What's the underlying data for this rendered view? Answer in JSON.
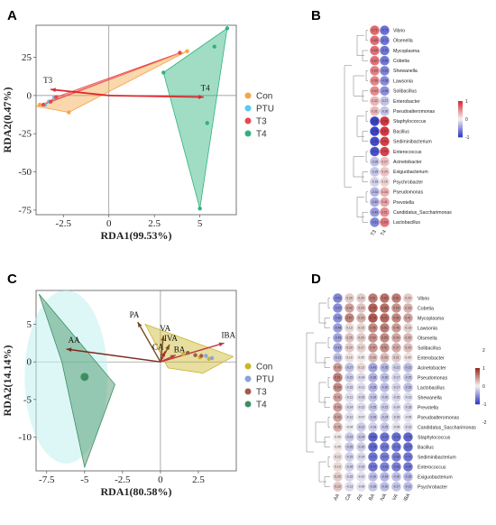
{
  "chart_data": [
    {
      "panel": "A",
      "type": "scatter",
      "xlabel": "RDA1(99.53%)",
      "ylabel": "RDA2(0.47%)",
      "xlim": [
        -4,
        7
      ],
      "ylim": [
        -78,
        46
      ],
      "xticks": [
        -2.5,
        0,
        2.5,
        5
      ],
      "yticks": [
        25,
        0,
        -25,
        -50,
        -75
      ],
      "legend": [
        "Con",
        "PTU",
        "T3",
        "T4"
      ],
      "colors": {
        "Con": "#f4a64a",
        "PTU": "#5bc8ec",
        "T3": "#e8474f",
        "T4": "#2fb37e"
      },
      "series": [
        {
          "name": "Con",
          "points": [
            [
              -3.8,
              -6
            ],
            [
              -2.2,
              -11
            ],
            [
              4.3,
              29
            ]
          ]
        },
        {
          "name": "PTU",
          "points": [
            [
              -3.5,
              -6
            ],
            [
              -3.3,
              -4
            ],
            [
              -3.0,
              -1
            ]
          ]
        },
        {
          "name": "T3",
          "points": [
            [
              -3.6,
              -6
            ],
            [
              -3.2,
              -4
            ],
            [
              -2.9,
              -1
            ],
            [
              3.9,
              28
            ]
          ]
        },
        {
          "name": "T4",
          "points": [
            [
              5,
              -74
            ],
            [
              5.4,
              -18
            ],
            [
              5.8,
              32
            ],
            [
              6.5,
              44
            ],
            [
              3,
              15
            ]
          ]
        }
      ],
      "hulls": [
        {
          "name": "Con",
          "points": [
            [
              -4,
              -7
            ],
            [
              4.3,
              29
            ],
            [
              -2.2,
              -11
            ]
          ]
        },
        {
          "name": "T3",
          "points": [
            [
              -3.6,
              -6
            ],
            [
              3.9,
              28
            ],
            [
              -2.9,
              -1
            ]
          ]
        },
        {
          "name": "T4",
          "points": [
            [
              3,
              15
            ],
            [
              6.5,
              44
            ],
            [
              5,
              -74
            ]
          ]
        }
      ],
      "vectors": [
        {
          "label": "T3",
          "x": -3.2,
          "y": 4
        },
        {
          "label": "T4",
          "x": 5.2,
          "y": -1
        }
      ]
    },
    {
      "panel": "B",
      "type": "heatmap",
      "columns": [
        "T3",
        "T4"
      ],
      "rows": [
        "Vibrio",
        "Olsenella",
        "Mycoplasma",
        "Cobetia",
        "Shewanella",
        "Lawsonia",
        "Solibacillus",
        "Enterobacter",
        "Pseudoalteromonas",
        "Staphylococcus",
        "Bacillus",
        "Sediminibacterium",
        "Enterococcus",
        "Acinetobacter",
        "Exiguobacterium",
        "Psychrobacter",
        "Pseudomonas",
        "Prevotella",
        "Candidatus_Saccharimonas",
        "Lactobacillus"
      ],
      "values": [
        [
          0.71,
          -0.73
        ],
        [
          0.69,
          -0.71
        ],
        [
          0.68,
          -0.7
        ],
        [
          0.67,
          -0.69
        ],
        [
          0.6,
          -0.63
        ],
        [
          0.56,
          -0.58
        ],
        [
          0.53,
          -0.55
        ],
        [
          0.32,
          -0.27
        ],
        [
          0.31,
          -0.26
        ],
        [
          -0.99,
          0.98
        ],
        [
          -0.98,
          0.97
        ],
        [
          -0.93,
          0.93
        ],
        [
          -0.91,
          0.9
        ],
        [
          -0.28,
          0.27
        ],
        [
          -0.25,
          0.24
        ],
        [
          -0.18,
          0.16
        ],
        [
          -0.34,
          0.34
        ],
        [
          -0.4,
          0.41
        ],
        [
          -0.49,
          0.51
        ],
        [
          -0.61,
          0.63
        ]
      ],
      "colorbar": [
        1,
        0,
        -1
      ]
    },
    {
      "panel": "C",
      "type": "scatter",
      "xlabel": "RDA1(80.58%)",
      "ylabel": "RDA2(14.14%)",
      "xlim": [
        -8.2,
        5
      ],
      "ylim": [
        -14.5,
        9.5
      ],
      "xticks": [
        -7.5,
        -5,
        -2.5,
        0,
        2.5
      ],
      "yticks": [
        5,
        0,
        -5,
        -10
      ],
      "legend": [
        "Con",
        "PTU",
        "T3",
        "T4"
      ],
      "colors": {
        "Con": "#c9b52a",
        "PTU": "#8aa4d8",
        "T3": "#a35a48",
        "T4": "#3d8f62"
      },
      "series": [
        {
          "name": "Con",
          "points": [
            [
              1.5,
              1.0
            ],
            [
              2.6,
              0.6
            ],
            [
              3.2,
              0.4
            ]
          ]
        },
        {
          "name": "PTU",
          "points": [
            [
              3.4,
              0.5
            ],
            [
              3.0,
              0.8
            ]
          ]
        },
        {
          "name": "T3",
          "points": [
            [
              1.8,
              1.2
            ],
            [
              2.3,
              0.9
            ],
            [
              2.7,
              0.8
            ]
          ]
        },
        {
          "name": "T4",
          "points": [
            [
              -5,
              -2
            ]
          ]
        }
      ],
      "hulls": [
        {
          "name": "T4",
          "points": [
            [
              -8,
              9
            ],
            [
              -3,
              -3
            ],
            [
              -5,
              -14
            ],
            [
              -6.5,
              0
            ]
          ]
        },
        {
          "name": "Con",
          "points": [
            [
              -1,
              5
            ],
            [
              4.8,
              0.7
            ],
            [
              2.8,
              -1.5
            ],
            [
              0.5,
              -0.8
            ]
          ]
        }
      ],
      "vectors": [
        {
          "label": "PA",
          "x": -1.5,
          "y": 5.3
        },
        {
          "label": "VA",
          "x": 0.2,
          "y": 3.5
        },
        {
          "label": "IVA",
          "x": 0.6,
          "y": 2.3
        },
        {
          "label": "CA",
          "x": 0.3,
          "y": 1.4
        },
        {
          "label": "BA",
          "x": 1.0,
          "y": 0.9
        },
        {
          "label": "IBA",
          "x": 4.2,
          "y": 2.5
        },
        {
          "label": "AA",
          "x": -6.2,
          "y": 1.7
        }
      ]
    },
    {
      "panel": "D",
      "type": "heatmap",
      "columns": [
        "AA",
        "CA",
        "PA",
        "BA",
        "IVA",
        "VA",
        "IBA"
      ],
      "rows": [
        "Vibrio",
        "Cobetia",
        "Mycoplasma",
        "Lawsonia",
        "Olsenella",
        "Solibacillus",
        "Enterobacter",
        "Acinetobacter",
        "Pseudomonas",
        "Lactobacillus",
        "Shewanella",
        "Prevotella",
        "Pseudoalteromonas",
        "Candidatus_Saccharimonas",
        "Staphylococcus",
        "Bacillus",
        "Sediminibacterium",
        "Enterococcus",
        "Exiguobacterium",
        "Psychrobacter"
      ],
      "values": [
        [
          -0.61,
          0.2,
          0.2,
          0.61,
          0.66,
          0.61,
          0.2
        ],
        [
          -0.57,
          0.42,
          0.24,
          0.75,
          0.68,
          0.5,
          0.33
        ],
        [
          -0.56,
          0.57,
          0.33,
          0.79,
          0.71,
          0.56,
          0.41
        ],
        [
          -0.48,
          0.13,
          0.15,
          0.55,
          0.61,
          0.45,
          0.18
        ],
        [
          -0.45,
          0.25,
          0.2,
          0.5,
          0.55,
          0.4,
          0.3
        ],
        [
          -0.43,
          0.2,
          0.17,
          0.47,
          0.51,
          0.37,
          0.26
        ],
        [
          -0.31,
          0.1,
          0.05,
          0.28,
          0.3,
          0.21,
          0.09
        ],
        [
          0.45,
          -0.27,
          0.13,
          -0.43,
          -0.35,
          -0.21,
          -0.31
        ],
        [
          0.61,
          -0.22,
          -0.14,
          -0.36,
          -0.3,
          -0.17,
          -0.25
        ],
        [
          0.54,
          -0.15,
          -0.11,
          -0.35,
          -0.3,
          -0.17,
          -0.29
        ],
        [
          0.41,
          -0.11,
          -0.15,
          -0.26,
          -0.2,
          -0.15,
          -0.13
        ],
        [
          0.43,
          -0.14,
          -0.12,
          -0.25,
          -0.22,
          -0.14,
          -0.18
        ],
        [
          0.42,
          -0.12,
          -0.07,
          -0.26,
          -0.24,
          -0.15,
          -0.09
        ],
        [
          0.35,
          -0.04,
          -0.21,
          -0.18,
          -0.25,
          -0.09,
          -0.13
        ],
        [
          0.05,
          -0.23,
          -0.24,
          -0.8,
          -0.72,
          -0.76,
          -0.79
        ],
        [
          0.05,
          -0.25,
          -0.2,
          -0.78,
          -0.7,
          -0.73,
          -0.77
        ],
        [
          0.12,
          -0.19,
          -0.14,
          -0.71,
          -0.67,
          -0.66,
          -0.7
        ],
        [
          0.13,
          -0.18,
          -0.16,
          -0.7,
          -0.63,
          -0.65,
          -0.69
        ],
        [
          0.2,
          -0.15,
          -0.1,
          -0.3,
          -0.34,
          -0.3,
          -0.35
        ],
        [
          0.23,
          -0.13,
          -0.09,
          -0.26,
          -0.3,
          -0.27,
          -0.31
        ]
      ],
      "colorbar": [
        2,
        1,
        0,
        -1,
        -2
      ]
    }
  ],
  "panels": {
    "a": "A",
    "b": "B",
    "c": "C",
    "d": "D"
  },
  "colors": {
    "pos": "#d7303a",
    "neg": "#3740c6",
    "mid": "#f5f2f2",
    "redtext": "#d0212b"
  }
}
